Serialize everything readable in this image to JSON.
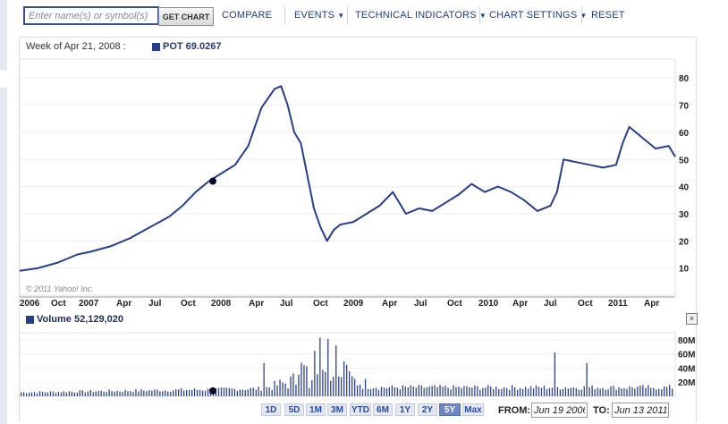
{
  "toolbar": {
    "search_placeholder": "Enter name(s) or symbol(s)",
    "get_chart": "GET CHART",
    "compare": "COMPARE",
    "events": "EVENTS",
    "technical_indicators": "TECHNICAL INDICATORS",
    "chart_settings": "CHART SETTINGS",
    "reset": "RESET",
    "caret": "▼"
  },
  "header": {
    "week_label": "Week of Apr 21, 2008 :",
    "series_label": "POT 69.0267"
  },
  "volume": {
    "label": "Volume 52,129,020",
    "close": "×"
  },
  "copyright": "© 2011 Yahoo! Inc.",
  "range_buttons": [
    "1D",
    "5D",
    "1M",
    "3M",
    "YTD",
    "6M",
    "1Y",
    "2Y",
    "5Y",
    "Max"
  ],
  "active_range": "5Y",
  "dates": {
    "from_label": "FROM:",
    "from_value": "Jun 19 2006",
    "to_label": "TO:",
    "to_value": "Jun 13 2011"
  },
  "colors": {
    "line": "#273f8a",
    "volume_bars": "#2f438c",
    "accent": "#1e3c86"
  },
  "chart_data": [
    {
      "type": "line",
      "series": [
        {
          "name": "POT",
          "x": [
            2006.46,
            2006.6,
            2006.75,
            2006.9,
            2007.0,
            2007.15,
            2007.3,
            2007.45,
            2007.6,
            2007.7,
            2007.8,
            2007.9,
            2008.0,
            2008.1,
            2008.2,
            2008.3,
            2008.4,
            2008.45,
            2008.5,
            2008.55,
            2008.6,
            2008.7,
            2008.75,
            2008.8,
            2008.85,
            2008.9,
            2009.0,
            2009.1,
            2009.2,
            2009.3,
            2009.4,
            2009.5,
            2009.6,
            2009.7,
            2009.8,
            2009.9,
            2010.0,
            2010.1,
            2010.2,
            2010.3,
            2010.4,
            2010.5,
            2010.55,
            2010.6,
            2010.7,
            2010.8,
            2010.9,
            2011.0,
            2011.05,
            2011.1,
            2011.2,
            2011.3,
            2011.4,
            2011.45
          ],
          "values": [
            9,
            10,
            12,
            15,
            16,
            18,
            21,
            25,
            29,
            33,
            38,
            42,
            45,
            48,
            55,
            69,
            76,
            77,
            70,
            60,
            56,
            32,
            25,
            20,
            24,
            26,
            27,
            30,
            33,
            38,
            30,
            32,
            31,
            34,
            37,
            41,
            38,
            40,
            38,
            35,
            31,
            33,
            38,
            50,
            49,
            48,
            47,
            48,
            56,
            62,
            58,
            54,
            55,
            51
          ]
        }
      ],
      "yticks": [
        10,
        20,
        30,
        40,
        50,
        60,
        70,
        80
      ],
      "x_tick_labels": [
        "2006",
        "Oct",
        "2007",
        "Apr",
        "Jul",
        "Oct",
        "2008",
        "Apr",
        "Jul",
        "Oct",
        "2009",
        "Apr",
        "Jul",
        "Oct",
        "2010",
        "Apr",
        "Jul",
        "Oct",
        "2011",
        "Apr"
      ],
      "ylim": [
        0,
        87
      ],
      "marker": {
        "x": "2007 Dec",
        "value": 42
      }
    },
    {
      "type": "bar",
      "series": [
        {
          "name": "Volume",
          "unit": "M"
        }
      ],
      "yticks": [
        "20M",
        "40M",
        "60M",
        "80M"
      ],
      "ylim": [
        0,
        90
      ],
      "peak_values_M": [
        83,
        55,
        47,
        65,
        47,
        20
      ]
    }
  ]
}
